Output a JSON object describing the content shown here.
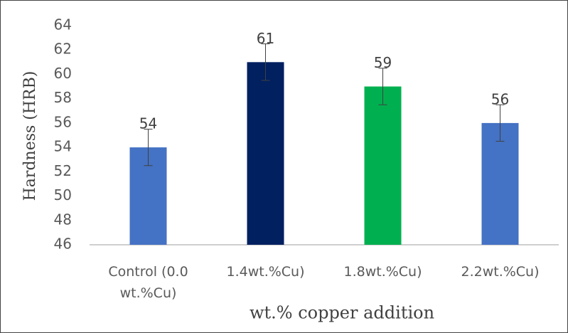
{
  "chart_data": {
    "type": "bar",
    "categories": [
      "Control (0.0 wt.%Cu)",
      "1.4wt.%Cu)",
      "1.8wt.%Cu)",
      "2.2wt.%Cu)"
    ],
    "values": [
      54,
      61,
      59,
      56
    ],
    "errors": [
      1.5,
      1.5,
      1.5,
      1.5
    ],
    "colors": [
      "#4472c4",
      "#002060",
      "#00b050",
      "#4472c4"
    ],
    "ylabel": "Hardness  (HRB)",
    "xlabel": "wt.% copper addition",
    "ylim": [
      46,
      64
    ],
    "yticks": [
      46,
      48,
      50,
      52,
      54,
      56,
      58,
      60,
      62,
      64
    ],
    "grid": false
  }
}
